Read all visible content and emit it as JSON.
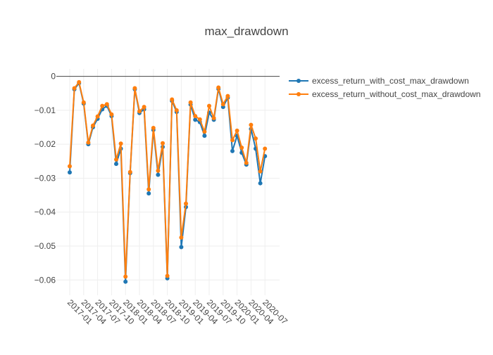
{
  "chart_data": {
    "type": "line",
    "title": "max_drawdown",
    "xlabel": "",
    "ylabel": "",
    "x": [
      "2017-01",
      "2017-02",
      "2017-03",
      "2017-04",
      "2017-05",
      "2017-06",
      "2017-07",
      "2017-08",
      "2017-09",
      "2017-10",
      "2017-11",
      "2017-12",
      "2018-01",
      "2018-02",
      "2018-03",
      "2018-04",
      "2018-05",
      "2018-06",
      "2018-07",
      "2018-08",
      "2018-09",
      "2018-10",
      "2018-11",
      "2018-12",
      "2019-01",
      "2019-02",
      "2019-03",
      "2019-04",
      "2019-05",
      "2019-06",
      "2019-07",
      "2019-08",
      "2019-09",
      "2019-10",
      "2019-11",
      "2019-12",
      "2020-01",
      "2020-02",
      "2020-03",
      "2020-04",
      "2020-05",
      "2020-06",
      "2020-07"
    ],
    "xticks": [
      "2017-01",
      "2017-04",
      "2017-07",
      "2017-10",
      "2018-01",
      "2018-04",
      "2018-07",
      "2018-10",
      "2019-01",
      "2019-04",
      "2019-07",
      "2019-10",
      "2020-01",
      "2020-04",
      "2020-07"
    ],
    "yticks": [
      0,
      -0.01,
      -0.02,
      -0.03,
      -0.04,
      -0.05,
      -0.06
    ],
    "ytick_labels": [
      "0",
      "−0.01",
      "−0.02",
      "−0.03",
      "−0.04",
      "−0.05",
      "−0.06"
    ],
    "ylim": [
      -0.0645,
      0.0022
    ],
    "legend_position": "top-right",
    "series": [
      {
        "name": "excess_return_with_cost_max_drawdown",
        "color": "#1f77b4",
        "values": [
          -0.0283,
          -0.0038,
          -0.002,
          -0.008,
          -0.02,
          -0.015,
          -0.0125,
          -0.0097,
          -0.0087,
          -0.0117,
          -0.0258,
          -0.0213,
          -0.0605,
          -0.0285,
          -0.0038,
          -0.0108,
          -0.0097,
          -0.0345,
          -0.0158,
          -0.029,
          -0.0208,
          -0.0595,
          -0.0072,
          -0.0105,
          -0.0503,
          -0.0385,
          -0.0083,
          -0.0128,
          -0.0135,
          -0.0175,
          -0.0107,
          -0.0128,
          -0.0037,
          -0.009,
          -0.0063,
          -0.022,
          -0.0175,
          -0.0225,
          -0.026,
          -0.0155,
          -0.0213,
          -0.0315,
          -0.0235
        ]
      },
      {
        "name": "excess_return_without_cost_max_drawdown",
        "color": "#ff7f0e",
        "values": [
          -0.0265,
          -0.0035,
          -0.0017,
          -0.0077,
          -0.0195,
          -0.0145,
          -0.0118,
          -0.0087,
          -0.0082,
          -0.0112,
          -0.0245,
          -0.0198,
          -0.059,
          -0.0282,
          -0.0035,
          -0.0103,
          -0.009,
          -0.0333,
          -0.0152,
          -0.0278,
          -0.0197,
          -0.0588,
          -0.0068,
          -0.01,
          -0.0475,
          -0.0375,
          -0.0077,
          -0.0117,
          -0.0127,
          -0.0163,
          -0.0087,
          -0.0123,
          -0.0033,
          -0.0082,
          -0.0058,
          -0.0188,
          -0.016,
          -0.021,
          -0.0255,
          -0.0143,
          -0.0183,
          -0.028,
          -0.0213
        ]
      }
    ]
  }
}
